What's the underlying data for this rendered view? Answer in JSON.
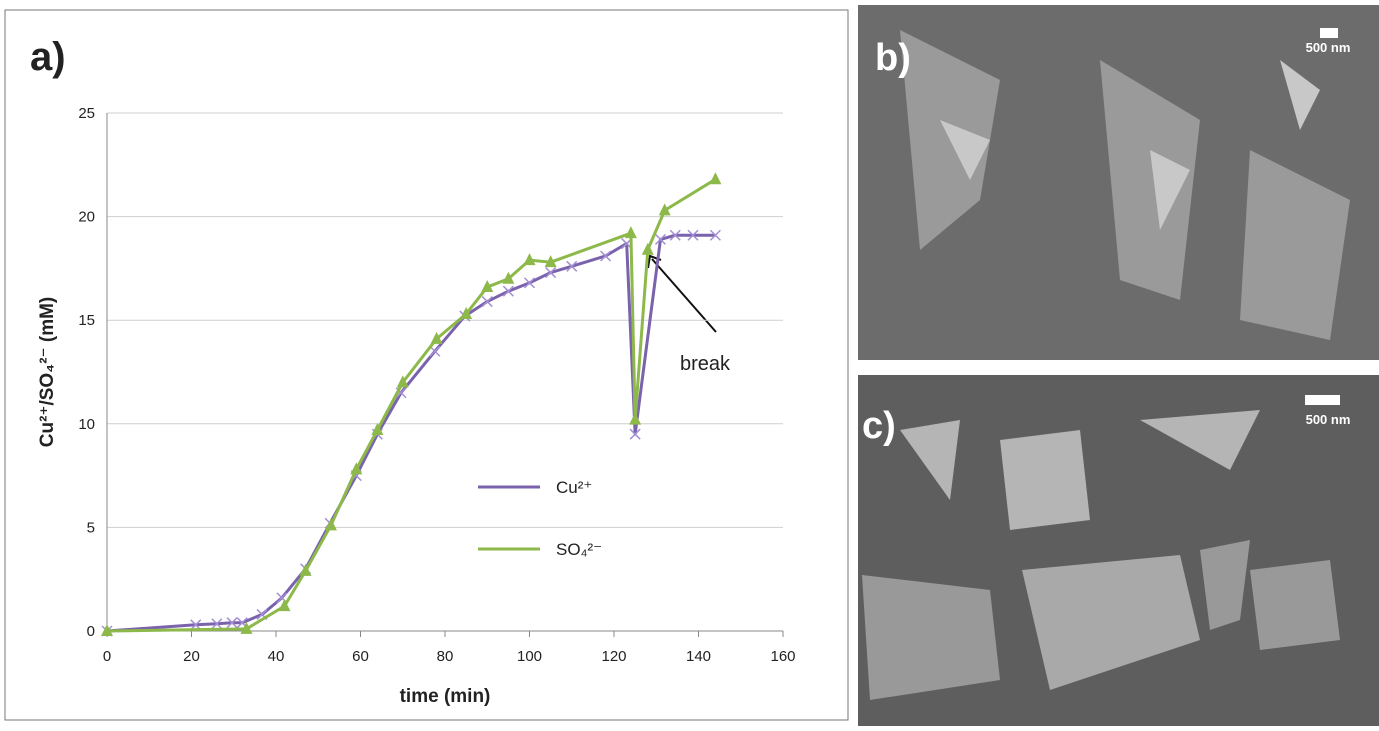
{
  "chart_data": {
    "type": "line",
    "panel_label": "a)",
    "x_label": "time (min)",
    "y_label": "Cu²⁺/SO₄²⁻ (mM)",
    "xlim": [
      0,
      160
    ],
    "xticks": [
      0,
      20,
      40,
      60,
      80,
      100,
      120,
      140,
      160
    ],
    "ylim": [
      0,
      25
    ],
    "yticks": [
      0,
      5,
      10,
      15,
      20,
      25
    ],
    "grid": true,
    "legend": "center-right",
    "annotation": "break",
    "series": [
      {
        "name": "Cu²⁺",
        "color": "#7a62ad",
        "marker": "x",
        "x": [
          0,
          21,
          26,
          29.6,
          32,
          36.7,
          41.4,
          47,
          52.8,
          59,
          64,
          69.6,
          77.6,
          84.7,
          90,
          95,
          100,
          105,
          110,
          118,
          123,
          125,
          131,
          134.5,
          138.7,
          144
        ],
        "values": [
          0,
          0.3,
          0.35,
          0.4,
          0.4,
          0.8,
          1.6,
          3,
          5.2,
          7.5,
          9.5,
          11.5,
          13.5,
          15.2,
          15.9,
          16.4,
          16.8,
          17.3,
          17.6,
          18.1,
          18.7,
          9.5,
          18.9,
          19.1,
          19.1,
          19.1
        ]
      },
      {
        "name": "SO₄²⁻",
        "color": "#8db84a",
        "marker": "triangle",
        "x": [
          0,
          33,
          42,
          47,
          53,
          59,
          64,
          70,
          78,
          85,
          90,
          95,
          100,
          105,
          124,
          125,
          128,
          132,
          144
        ],
        "values": [
          0,
          0.1,
          1.2,
          2.9,
          5.1,
          7.8,
          9.7,
          12,
          14.1,
          15.3,
          16.6,
          17,
          17.9,
          17.8,
          19.2,
          10.2,
          18.4,
          20.3,
          21.8
        ]
      }
    ]
  },
  "images": [
    {
      "label": "b)",
      "scale": "500 nm"
    },
    {
      "label": "c)",
      "scale": "500 nm"
    }
  ]
}
